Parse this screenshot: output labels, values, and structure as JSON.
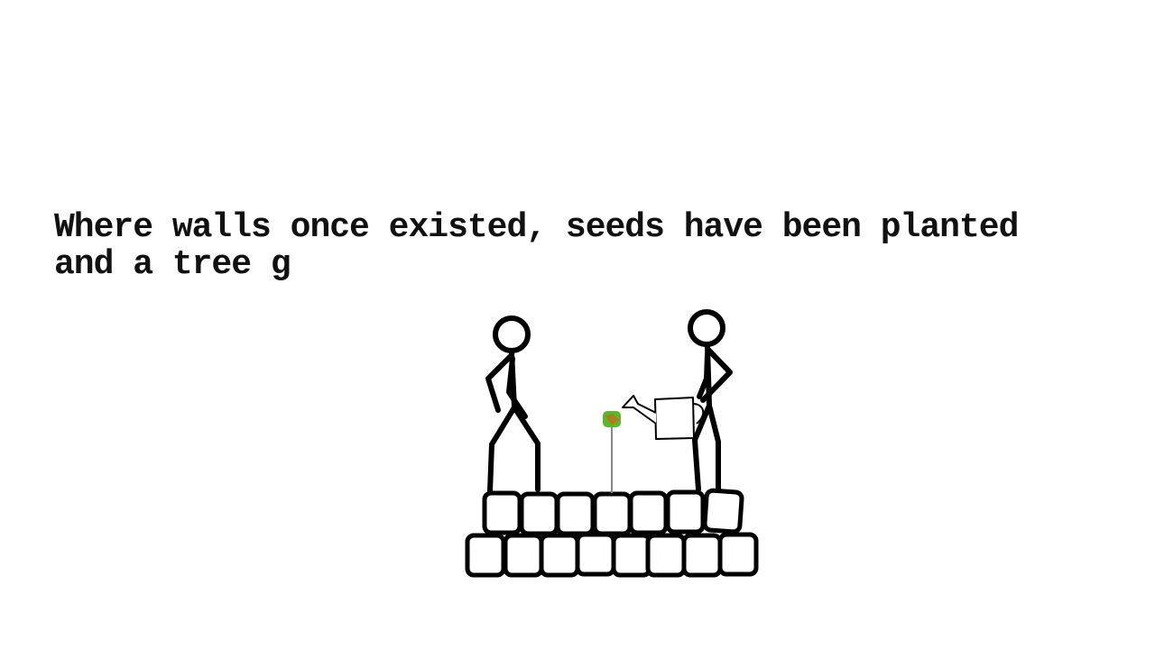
{
  "scene": {
    "narration_line1": "Where walls once existed, seeds have been planted",
    "narration_line2": "and a tree g"
  },
  "colors": {
    "background": "#ffffff",
    "ink": "#000000",
    "seedling_green": "#5cb82a",
    "seedling_brown": "#b8731f",
    "stem": "#888888"
  },
  "icons": {
    "watering_can": "watering-can-icon",
    "seedling": "seedling-icon"
  }
}
